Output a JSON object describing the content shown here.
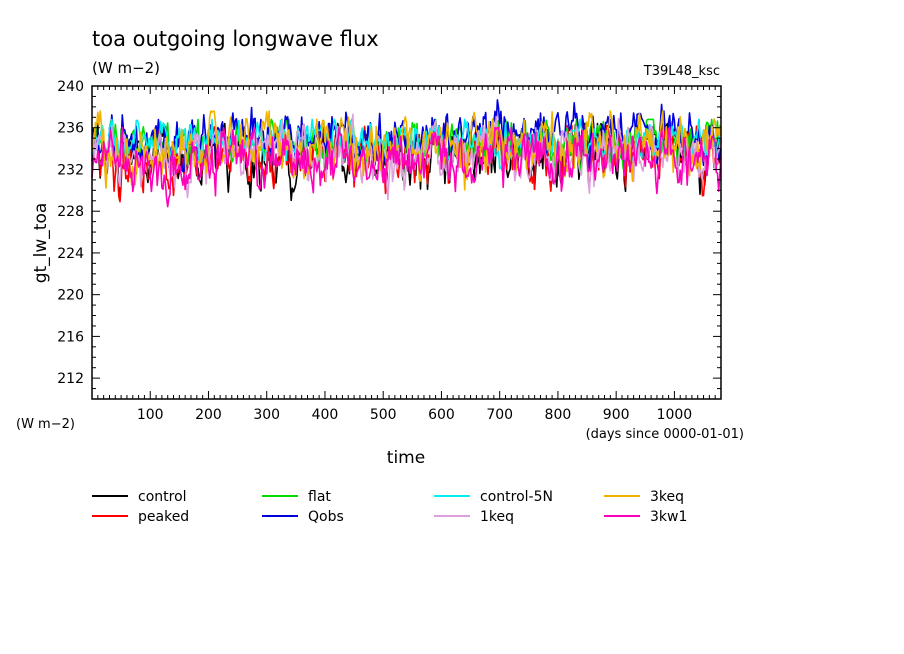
{
  "chart_data": {
    "type": "line",
    "title": "toa outgoing longwave flux",
    "subtitle": "(W m−2)",
    "run_label": "T39L48_ksc",
    "ylabel": "gt_lw_toa",
    "y_unit_label": "(W m−2)",
    "xlabel": "time",
    "x_unit_label": "(days since 0000-01-01)",
    "xlim": [
      0,
      1080
    ],
    "ylim": [
      210,
      240
    ],
    "x_ticks": [
      100,
      200,
      300,
      400,
      500,
      600,
      700,
      800,
      900,
      1000
    ],
    "y_ticks": [
      212,
      216,
      220,
      224,
      228,
      232,
      236,
      240
    ],
    "legend_placement": "bottom",
    "series": [
      {
        "name": "control",
        "color": "#000000",
        "mean": 233.2,
        "amplitude": 1.6,
        "min": 227.6,
        "max": 236.4
      },
      {
        "name": "peaked",
        "color": "#ff0000",
        "mean": 233.1,
        "amplitude": 1.5,
        "min": 228.4,
        "max": 236.2
      },
      {
        "name": "flat",
        "color": "#00dd00",
        "mean": 234.6,
        "amplitude": 1.2,
        "min": 231.5,
        "max": 236.8
      },
      {
        "name": "Qobs",
        "color": "#0000dd",
        "mean": 235.2,
        "amplitude": 1.3,
        "min": 231.8,
        "max": 238.7
      },
      {
        "name": "control-5N",
        "color": "#00eeee",
        "mean": 234.6,
        "amplitude": 1.0,
        "min": 232.0,
        "max": 236.8
      },
      {
        "name": "1keq",
        "color": "#dda0dd",
        "mean": 233.4,
        "amplitude": 1.5,
        "min": 228.8,
        "max": 237.8
      },
      {
        "name": "3keq",
        "color": "#f0b400",
        "mean": 234.0,
        "amplitude": 1.5,
        "min": 227.4,
        "max": 237.6
      },
      {
        "name": "3kw1",
        "color": "#ff00bb",
        "mean": 233.0,
        "amplitude": 1.5,
        "min": 227.8,
        "max": 236.0
      }
    ]
  }
}
